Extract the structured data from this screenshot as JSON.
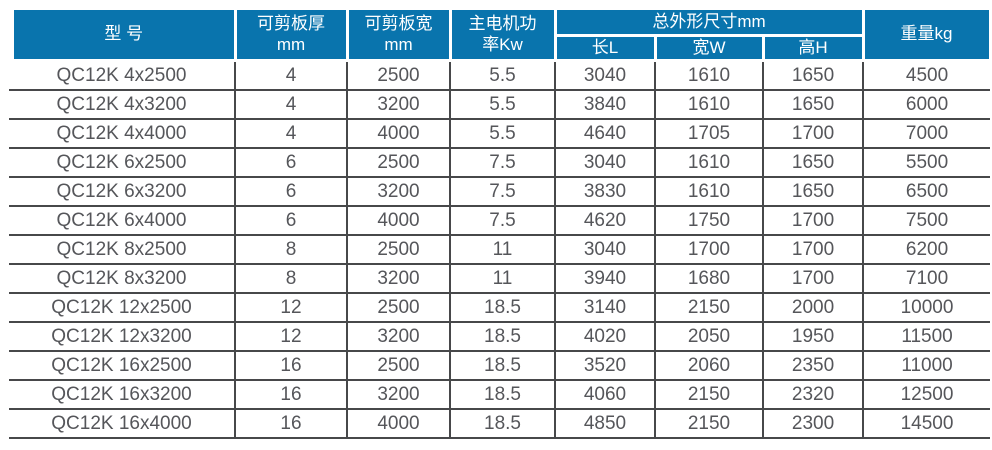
{
  "colors": {
    "header_bg": "#0974ad",
    "header_text": "#ffffff",
    "body_text": "#55565a",
    "border": "#47484a",
    "page_bg": "#ffffff"
  },
  "table": {
    "headers": {
      "model": "型 号",
      "thickness": "可剪板厚\nmm",
      "sheet_width": "可剪板宽\nmm",
      "motor_power": "主电机功\n率Kw",
      "overall_dims_group": "总外形尺寸mm",
      "dim_length": "长L",
      "dim_width": "宽W",
      "dim_height": "高H",
      "weight": "重量kg"
    },
    "rows": [
      [
        "QC12K 4x2500",
        "4",
        "2500",
        "5.5",
        "3040",
        "1610",
        "1650",
        "4500"
      ],
      [
        "QC12K 4x3200",
        "4",
        "3200",
        "5.5",
        "3840",
        "1610",
        "1650",
        "6000"
      ],
      [
        "QC12K 4x4000",
        "4",
        "4000",
        "5.5",
        "4640",
        "1705",
        "1700",
        "7000"
      ],
      [
        "QC12K 6x2500",
        "6",
        "2500",
        "7.5",
        "3040",
        "1610",
        "1650",
        "5500"
      ],
      [
        "QC12K 6x3200",
        "6",
        "3200",
        "7.5",
        "3830",
        "1610",
        "1650",
        "6500"
      ],
      [
        "QC12K 6x4000",
        "6",
        "4000",
        "7.5",
        "4620",
        "1750",
        "1700",
        "7500"
      ],
      [
        "QC12K 8x2500",
        "8",
        "2500",
        "11",
        "3040",
        "1700",
        "1700",
        "6200"
      ],
      [
        "QC12K 8x3200",
        "8",
        "3200",
        "11",
        "3940",
        "1680",
        "1700",
        "7100"
      ],
      [
        "QC12K 12x2500",
        "12",
        "2500",
        "18.5",
        "3140",
        "2150",
        "2000",
        "10000"
      ],
      [
        "QC12K 12x3200",
        "12",
        "3200",
        "18.5",
        "4020",
        "2050",
        "1950",
        "11500"
      ],
      [
        "QC12K 16x2500",
        "16",
        "2500",
        "18.5",
        "3520",
        "2060",
        "2350",
        "11000"
      ],
      [
        "QC12K 16x3200",
        "16",
        "3200",
        "18.5",
        "4060",
        "2150",
        "2320",
        "12500"
      ],
      [
        "QC12K 16x4000",
        "16",
        "4000",
        "18.5",
        "4850",
        "2150",
        "2300",
        "14500"
      ]
    ]
  }
}
